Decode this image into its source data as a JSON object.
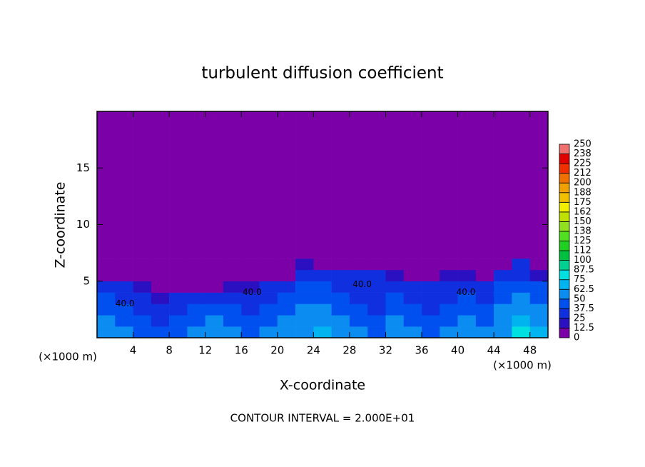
{
  "chart_data": {
    "type": "contour",
    "title": "turbulent diffusion coefficient",
    "xlabel": "X-coordinate",
    "ylabel": "Z-coordinate",
    "y_unit_label": "(×1000 m)",
    "x_unit_label": "(×1000 m)",
    "footer": "CONTOUR INTERVAL = 2.000E+01",
    "xlim": [
      0,
      50
    ],
    "ylim": [
      0,
      20
    ],
    "xticks": [
      4,
      8,
      12,
      16,
      20,
      24,
      28,
      32,
      36,
      40,
      44,
      48
    ],
    "yticks": [
      5,
      10,
      15
    ],
    "x_edges": [
      0,
      2,
      4,
      6,
      8,
      10,
      12,
      14,
      16,
      18,
      20,
      22,
      24,
      26,
      28,
      30,
      32,
      34,
      36,
      38,
      40,
      42,
      44,
      46,
      48,
      50
    ],
    "z_edges": [
      0,
      1,
      2,
      3,
      4,
      5,
      6,
      7,
      20
    ],
    "values": [
      [
        55,
        50,
        45,
        40,
        45,
        50,
        55,
        50,
        45,
        50,
        55,
        60,
        70,
        55,
        50,
        45,
        55,
        50,
        45,
        50,
        55,
        50,
        60,
        80,
        70
      ],
      [
        50,
        45,
        40,
        35,
        40,
        45,
        50,
        45,
        40,
        45,
        50,
        55,
        60,
        50,
        45,
        40,
        50,
        45,
        40,
        45,
        50,
        45,
        55,
        70,
        60
      ],
      [
        45,
        40,
        35,
        30,
        35,
        40,
        45,
        40,
        35,
        40,
        45,
        50,
        50,
        45,
        40,
        35,
        45,
        40,
        35,
        40,
        45,
        40,
        50,
        60,
        55
      ],
      [
        40,
        35,
        25,
        20,
        25,
        30,
        35,
        30,
        25,
        35,
        40,
        45,
        45,
        40,
        35,
        30,
        40,
        35,
        30,
        35,
        40,
        35,
        45,
        50,
        45
      ],
      [
        35,
        30,
        20,
        10,
        8,
        8,
        10,
        15,
        20,
        30,
        35,
        40,
        40,
        35,
        30,
        25,
        35,
        30,
        25,
        30,
        35,
        30,
        40,
        45,
        40
      ],
      [
        5,
        5,
        5,
        3,
        2,
        2,
        2,
        2,
        5,
        5,
        10,
        30,
        25,
        30,
        35,
        30,
        20,
        10,
        10,
        15,
        20,
        10,
        30,
        35,
        20
      ],
      [
        0,
        0,
        0,
        0,
        0,
        0,
        0,
        0,
        0,
        0,
        0,
        20,
        5,
        0,
        0,
        0,
        0,
        0,
        0,
        0,
        0,
        0,
        10,
        25,
        0
      ],
      [
        0,
        0,
        0,
        0,
        0,
        0,
        0,
        0,
        0,
        0,
        0,
        0,
        0,
        0,
        0,
        0,
        0,
        0,
        0,
        0,
        0,
        0,
        0,
        0,
        0
      ]
    ],
    "contour_labels": [
      {
        "x": 3.1,
        "y": 3.0,
        "value": 40,
        "label": "40.0"
      },
      {
        "x": 17.2,
        "y": 4.0,
        "value": 40,
        "label": "40.0"
      },
      {
        "x": 29.4,
        "y": 4.7,
        "value": 40,
        "label": "40.0"
      },
      {
        "x": 40.9,
        "y": 4.0,
        "value": 40,
        "label": "40.0"
      }
    ],
    "colorbar_ticks": [
      0,
      12.5,
      25,
      37.5,
      50,
      62.5,
      75,
      87.5,
      100,
      {
        "value": 112.5,
        "label": "112"
      },
      125,
      {
        "value": 137.5,
        "label": "138"
      },
      150,
      {
        "value": 162.5,
        "label": "162"
      },
      175,
      {
        "value": 187.5,
        "label": "188"
      },
      200,
      {
        "value": 212.5,
        "label": "212"
      },
      225,
      {
        "value": 237.5,
        "label": "238"
      },
      250
    ],
    "colors": [
      "#7b00a8",
      "#2a10c0",
      "#1030e0",
      "#0050f0",
      "#0a8cf0",
      "#00b4f0",
      "#00e0e0",
      "#00d090",
      "#00c040",
      "#20d020",
      "#50e020",
      "#90e020",
      "#c0e000",
      "#f0f000",
      "#f0c000",
      "#f0a000",
      "#f07000",
      "#f03000",
      "#e00000",
      "#f07070"
    ]
  }
}
